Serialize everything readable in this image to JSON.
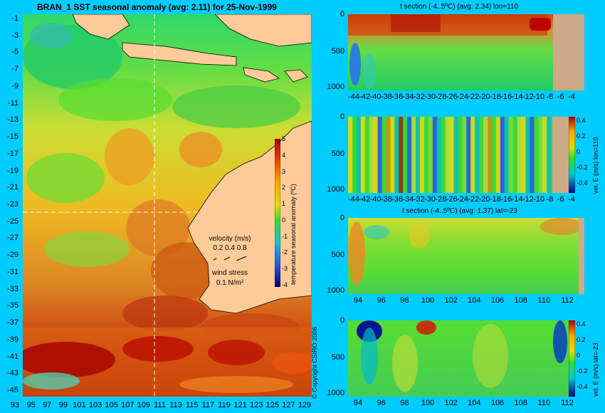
{
  "map": {
    "title": "BRAN_1 SST seasonal anomaly (avg: 2.11) for 25-Nov-1999",
    "lat_ticks": [
      "-1",
      "-3",
      "-5",
      "-7",
      "-9",
      "-11",
      "-13",
      "-15",
      "-17",
      "-19",
      "-21",
      "-23",
      "-25",
      "-27",
      "-29",
      "-31",
      "-33",
      "-35",
      "-37",
      "-39",
      "-41",
      "-43",
      "-45"
    ],
    "lon_ticks": [
      "93",
      "95",
      "97",
      "99",
      "101",
      "103",
      "105",
      "107",
      "109",
      "111",
      "113",
      "115",
      "117",
      "119",
      "121",
      "123",
      "125",
      "127",
      "129"
    ],
    "colorbar": {
      "label": "temperature seasonal anomaly (ºC)",
      "ticks": [
        "5",
        "4",
        "3",
        "2",
        "1",
        "0",
        "-1",
        "-2",
        "-3",
        "-4"
      ],
      "range": [
        -4,
        5
      ]
    },
    "velocity_legend": {
      "title": "velocity (m/s)",
      "values": "0.2 0.4 0.8"
    },
    "wind_legend": {
      "title": "wind stress",
      "value": "0.1 N/m²"
    },
    "copyright": "© Copyright CSIRO 2006",
    "section_lon": 110,
    "section_lat": -23
  },
  "panels": [
    {
      "title": "t section (-4..5ºC) (avg: 2.34) lon=110",
      "x_ticks": [
        "-44",
        "-42",
        "-40",
        "-38",
        "-36",
        "-34",
        "-32",
        "-30",
        "-28",
        "-26",
        "-24",
        "-22",
        "-20",
        "-18",
        "-16",
        "-14",
        "-12",
        "-10",
        "-8",
        "-6",
        "-4"
      ],
      "y_ticks": [
        "0",
        "500",
        "1000"
      ],
      "colorbar_label": "",
      "colorbar_ticks": []
    },
    {
      "title": "",
      "x_ticks": [
        "-44",
        "-42",
        "-40",
        "-38",
        "-36",
        "-34",
        "-32",
        "-30",
        "-28",
        "-26",
        "-24",
        "-22",
        "-20",
        "-18",
        "-16",
        "-14",
        "-12",
        "-10",
        "-8",
        "-6",
        "-4"
      ],
      "y_ticks": [
        "0",
        "500",
        "1000"
      ],
      "colorbar_label": "vel. E (m/s) lon=110",
      "colorbar_ticks": [
        "0.4",
        "0.2",
        "0",
        "-0.2",
        "-0.4"
      ]
    },
    {
      "title": "t section (-4..5ºC) (avg: 1.37) lat=-23",
      "x_ticks": [
        "94",
        "96",
        "98",
        "100",
        "102",
        "104",
        "106",
        "108",
        "110",
        "112"
      ],
      "y_ticks": [
        "0",
        "500",
        "1000"
      ],
      "colorbar_label": "",
      "colorbar_ticks": []
    },
    {
      "title": "",
      "x_ticks": [
        "94",
        "96",
        "98",
        "100",
        "102",
        "104",
        "106",
        "108",
        "110",
        "112"
      ],
      "y_ticks": [
        "0",
        "500",
        "1000"
      ],
      "colorbar_label": "vel. E (m/s) lat=-23",
      "colorbar_ticks": [
        "0.4",
        "0.2",
        "0",
        "-0.2",
        "-0.4"
      ]
    }
  ]
}
